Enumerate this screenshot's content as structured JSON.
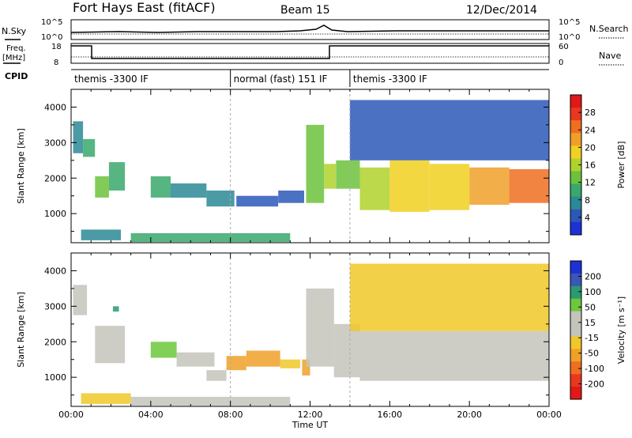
{
  "header": {
    "station": "Fort Hays East (fitACF)",
    "beam": "Beam 15",
    "date": "12/Dec/2014"
  },
  "top_panels": {
    "nsky_label": "N.Sky",
    "nsearch_label": "N.Search",
    "nsky_ticks": [
      "10^5",
      "10^0"
    ],
    "nsearch_ticks": [
      "10^5",
      "10^0"
    ],
    "freq_label_1": "Freq.",
    "freq_label_2": "[MHz]",
    "freq_ticks": [
      "18",
      "8"
    ],
    "nave_label": "Nave",
    "nave_ticks": [
      "60",
      "0"
    ],
    "cpid_label": "CPID"
  },
  "cpid_segments": [
    {
      "label": "themis -3300 IF",
      "start_hour": 0
    },
    {
      "label": "normal (fast) 151 IF",
      "start_hour": 8
    },
    {
      "label": "themis -3300 IF",
      "start_hour": 14
    }
  ],
  "colors": {
    "power_scale": [
      "#1f30d6",
      "#2c58b8",
      "#2c8a96",
      "#3aa86c",
      "#6cc23c",
      "#b0d22c",
      "#f0d020",
      "#f0a028",
      "#f06e20",
      "#e83820",
      "#e01818"
    ],
    "velocity_scale": [
      "#1f30d6",
      "#3a56b8",
      "#2c9a70",
      "#6cc83c",
      "#c4c4bc",
      "#c4c4bc",
      "#f0c828",
      "#f0a028",
      "#f06e20",
      "#e83820",
      "#e01818"
    ]
  },
  "chart_data": [
    {
      "type": "heatmap",
      "name": "power",
      "xlabel": "",
      "ylabel": "Slant Range [km]",
      "colorbar_label": "Power [dB]",
      "colorbar_ticks": [
        "28",
        "24",
        "20",
        "16",
        "12",
        "8",
        "4"
      ],
      "yticks": [
        "4000",
        "3000",
        "2000",
        "1000"
      ],
      "xticks": [],
      "xlim": [
        0,
        24
      ],
      "ylim": [
        180,
        4500
      ],
      "clim": [
        0,
        30
      ],
      "regions": [
        {
          "t0": 0.1,
          "t1": 0.6,
          "r0": 2700,
          "r1": 3600,
          "value": 8
        },
        {
          "t0": 0.6,
          "t1": 1.2,
          "r0": 2600,
          "r1": 3100,
          "value": 10
        },
        {
          "t0": 1.2,
          "t1": 1.9,
          "r0": 1450,
          "r1": 2050,
          "value": 13
        },
        {
          "t0": 1.9,
          "t1": 2.7,
          "r0": 1650,
          "r1": 2450,
          "value": 10
        },
        {
          "t0": 4.0,
          "t1": 5.0,
          "r0": 1450,
          "r1": 2050,
          "value": 9
        },
        {
          "t0": 5.0,
          "t1": 6.8,
          "r0": 1450,
          "r1": 1850,
          "value": 7
        },
        {
          "t0": 6.8,
          "t1": 8.2,
          "r0": 1200,
          "r1": 1650,
          "value": 6
        },
        {
          "t0": 8.3,
          "t1": 10.4,
          "r0": 1200,
          "r1": 1500,
          "value": 5
        },
        {
          "t0": 10.4,
          "t1": 11.7,
          "r0": 1300,
          "r1": 1650,
          "value": 4
        },
        {
          "t0": 11.8,
          "t1": 12.7,
          "r0": 1300,
          "r1": 3500,
          "value": 13
        },
        {
          "t0": 12.7,
          "t1": 13.3,
          "r0": 1700,
          "r1": 2400,
          "value": 16
        },
        {
          "t0": 13.3,
          "t1": 14.5,
          "r0": 1700,
          "r1": 2500,
          "value": 11
        },
        {
          "t0": 14.5,
          "t1": 16.0,
          "r0": 1100,
          "r1": 2300,
          "value": 15
        },
        {
          "t0": 16.0,
          "t1": 18.0,
          "r0": 1050,
          "r1": 2500,
          "value": 17
        },
        {
          "t0": 18.0,
          "t1": 20.0,
          "r0": 1100,
          "r1": 2400,
          "value": 19
        },
        {
          "t0": 20.0,
          "t1": 22.0,
          "r0": 1250,
          "r1": 2300,
          "value": 20
        },
        {
          "t0": 22.0,
          "t1": 24.0,
          "r0": 1300,
          "r1": 2250,
          "value": 22
        },
        {
          "t0": 0.5,
          "t1": 2.5,
          "r0": 250,
          "r1": 550,
          "value": 6
        },
        {
          "t0": 3.0,
          "t1": 11.0,
          "r0": 200,
          "r1": 450,
          "value": 9
        },
        {
          "t0": 14.0,
          "t1": 24.0,
          "r0": 2500,
          "r1": 4200,
          "value": 5
        }
      ]
    },
    {
      "type": "heatmap",
      "name": "velocity",
      "xlabel": "Time UT",
      "ylabel": "Slant Range [km]",
      "colorbar_label": "Velocity [m s⁻¹]",
      "colorbar_ticks": [
        "200",
        "100",
        "50",
        "15",
        "-15",
        "-50",
        "-100",
        "-200"
      ],
      "yticks": [
        "4000",
        "3000",
        "2000",
        "1000"
      ],
      "xticks": [
        "00:00",
        "04:00",
        "08:00",
        "12:00",
        "16:00",
        "20:00",
        "00:00"
      ],
      "xlim": [
        0,
        24
      ],
      "ylim": [
        180,
        4500
      ],
      "clim": [
        -250,
        250
      ],
      "regions": [
        {
          "t0": 0.1,
          "t1": 0.8,
          "r0": 2750,
          "r1": 3600,
          "value": 0
        },
        {
          "t0": 1.2,
          "t1": 2.7,
          "r0": 1400,
          "r1": 2450,
          "value": 0
        },
        {
          "t0": 2.1,
          "t1": 2.4,
          "r0": 2850,
          "r1": 3000,
          "value": 150
        },
        {
          "t0": 4.0,
          "t1": 5.3,
          "r0": 1550,
          "r1": 2000,
          "value": 100
        },
        {
          "t0": 5.3,
          "t1": 7.2,
          "r0": 1300,
          "r1": 1700,
          "value": 40
        },
        {
          "t0": 6.8,
          "t1": 7.8,
          "r0": 900,
          "r1": 1200,
          "value": 0
        },
        {
          "t0": 7.8,
          "t1": 8.8,
          "r0": 1200,
          "r1": 1600,
          "value": -70
        },
        {
          "t0": 8.8,
          "t1": 10.5,
          "r0": 1300,
          "r1": 1750,
          "value": -90
        },
        {
          "t0": 10.5,
          "t1": 11.5,
          "r0": 1250,
          "r1": 1500,
          "value": -60
        },
        {
          "t0": 11.6,
          "t1": 12.0,
          "r0": 1050,
          "r1": 1500,
          "value": -110
        },
        {
          "t0": 11.8,
          "t1": 13.2,
          "r0": 1300,
          "r1": 3500,
          "value": 40
        },
        {
          "t0": 13.2,
          "t1": 14.5,
          "r0": 1000,
          "r1": 2500,
          "value": 25
        },
        {
          "t0": 14.5,
          "t1": 24.0,
          "r0": 900,
          "r1": 2300,
          "value": 0
        },
        {
          "t0": 14.0,
          "t1": 24.0,
          "r0": 2300,
          "r1": 4200,
          "value": -30
        },
        {
          "t0": 0.5,
          "t1": 3.0,
          "r0": 250,
          "r1": 550,
          "value": -60
        },
        {
          "t0": 3.0,
          "t1": 11.0,
          "r0": 200,
          "r1": 450,
          "value": 30
        }
      ]
    }
  ]
}
